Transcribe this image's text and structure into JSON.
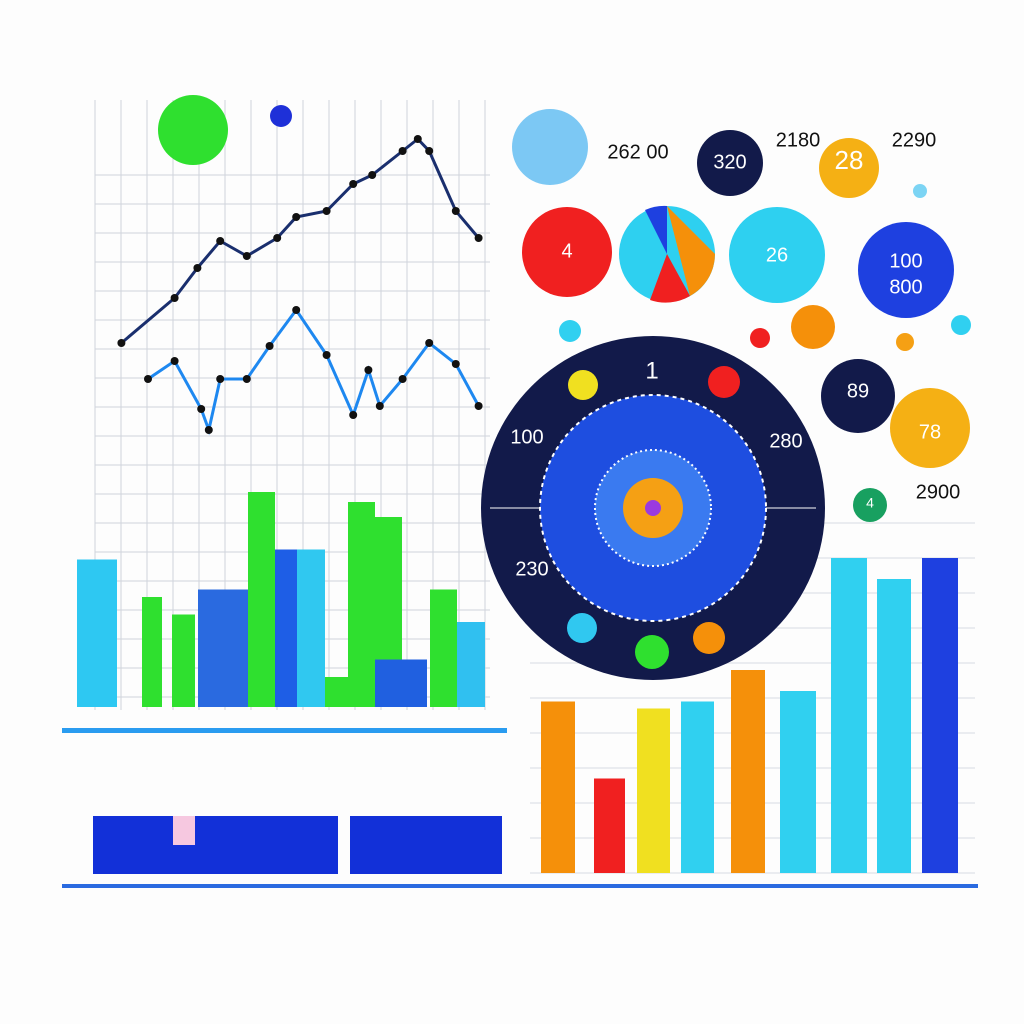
{
  "chart_data": [
    {
      "type": "line",
      "xlim": [
        0,
        100
      ],
      "ylim": [
        0,
        100
      ],
      "series": [
        {
          "color": "#1a2f6e",
          "x": [
            3,
            17,
            23,
            29,
            36,
            44,
            49,
            57,
            64,
            69,
            77,
            81,
            84,
            91,
            97
          ],
          "values": [
            29,
            44,
            54,
            63,
            58,
            64,
            71,
            73,
            82,
            85,
            93,
            97,
            93,
            73,
            64
          ]
        },
        {
          "color": "#1e88f0",
          "x": [
            10,
            17,
            24,
            26,
            29,
            36,
            42,
            49,
            57,
            64,
            68,
            71,
            77,
            84,
            91,
            97
          ],
          "values": [
            17,
            23,
            7,
            0,
            17,
            17,
            28,
            40,
            25,
            5,
            20,
            8,
            17,
            29,
            22,
            8
          ]
        }
      ]
    },
    {
      "type": "bar",
      "ylim": [
        0,
        100
      ],
      "categories": [
        null,
        null,
        null,
        null,
        null,
        null,
        null,
        null,
        null,
        null,
        null,
        null,
        null
      ],
      "values": [
        59,
        44,
        37,
        47,
        86,
        63,
        63,
        12,
        82,
        76,
        19,
        47,
        34
      ],
      "colors": [
        "#2ec8f2",
        "#2fe02f",
        "#2fe02f",
        "#2a6ae0",
        "#2fe02f",
        "#1e5ee6",
        "#30c8f0",
        "#2fe02f",
        "#2fe02f",
        "#2fe02f",
        "#2060e0",
        "#2fe02f",
        "#30c0f0"
      ]
    },
    {
      "type": "bar",
      "ylim": [
        0,
        100
      ],
      "categories": [
        null,
        null,
        null,
        null,
        null,
        null,
        null,
        null,
        null
      ],
      "values": [
        49,
        27,
        47,
        49,
        58,
        52,
        90,
        84,
        90
      ],
      "colors": [
        "#f5900a",
        "#f02020",
        "#f0e020",
        "#30d0f0",
        "#f5900a",
        "#30d0f0",
        "#30d0f0",
        "#30d0f0",
        "#1e40e0"
      ]
    }
  ],
  "labels": {
    "top_value": "262 00",
    "value_a": "2180",
    "value_b": "2290",
    "circle_dark": "320",
    "circle_yellow": "28",
    "circle_red": "4",
    "circle_cyan": "26",
    "circle_blue_top": "100",
    "circle_blue_bottom": "800",
    "circle_navy": "89",
    "circle_orange": "78",
    "value_c": "2900",
    "circle_green": "4",
    "dial_top": "1",
    "dial_left": "100",
    "dial_right": "280",
    "dial_bottom_left": "230"
  }
}
